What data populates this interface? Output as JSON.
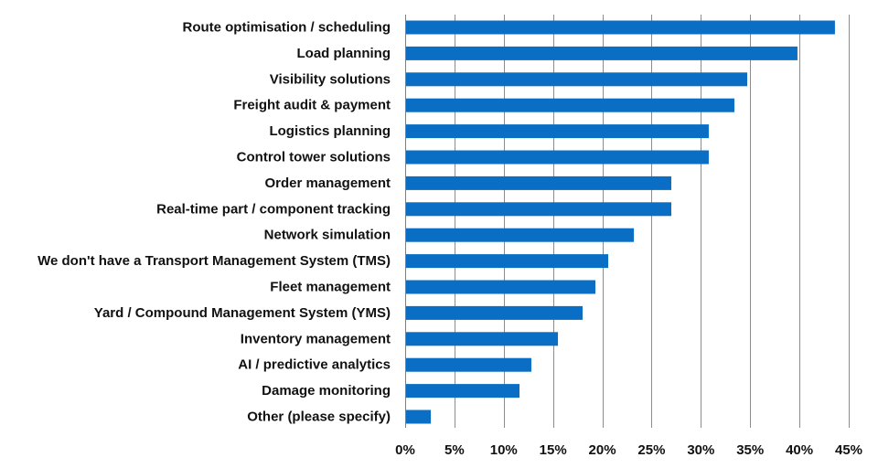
{
  "chart_data": {
    "type": "bar",
    "orientation": "horizontal",
    "title": "",
    "xlabel": "",
    "ylabel": "",
    "categories": [
      "Route optimisation / scheduling",
      "Load planning",
      "Visibility solutions",
      "Freight audit & payment",
      "Logistics planning",
      "Control tower solutions",
      "Order management",
      "Real-time part / component tracking",
      "Network simulation",
      "We don't have a Transport Management System (TMS)",
      "Fleet management",
      "Yard / Compound Management System (YMS)",
      "Inventory management",
      "AI / predictive analytics",
      "Damage monitoring",
      "Other (please specify)"
    ],
    "values": [
      43.6,
      39.8,
      34.7,
      33.4,
      30.8,
      30.8,
      27.0,
      27.0,
      23.2,
      20.6,
      19.3,
      18.0,
      15.5,
      12.8,
      11.6,
      2.6
    ],
    "unit": "%",
    "xlim": [
      0,
      45
    ],
    "xticks": [
      0,
      5,
      10,
      15,
      20,
      25,
      30,
      35,
      40,
      45
    ],
    "xtick_labels": [
      "0%",
      "5%",
      "10%",
      "15%",
      "20%",
      "25%",
      "30%",
      "35%",
      "40%",
      "45%"
    ],
    "grid": true,
    "legend": false,
    "bar_color": "#0A6EC5"
  }
}
